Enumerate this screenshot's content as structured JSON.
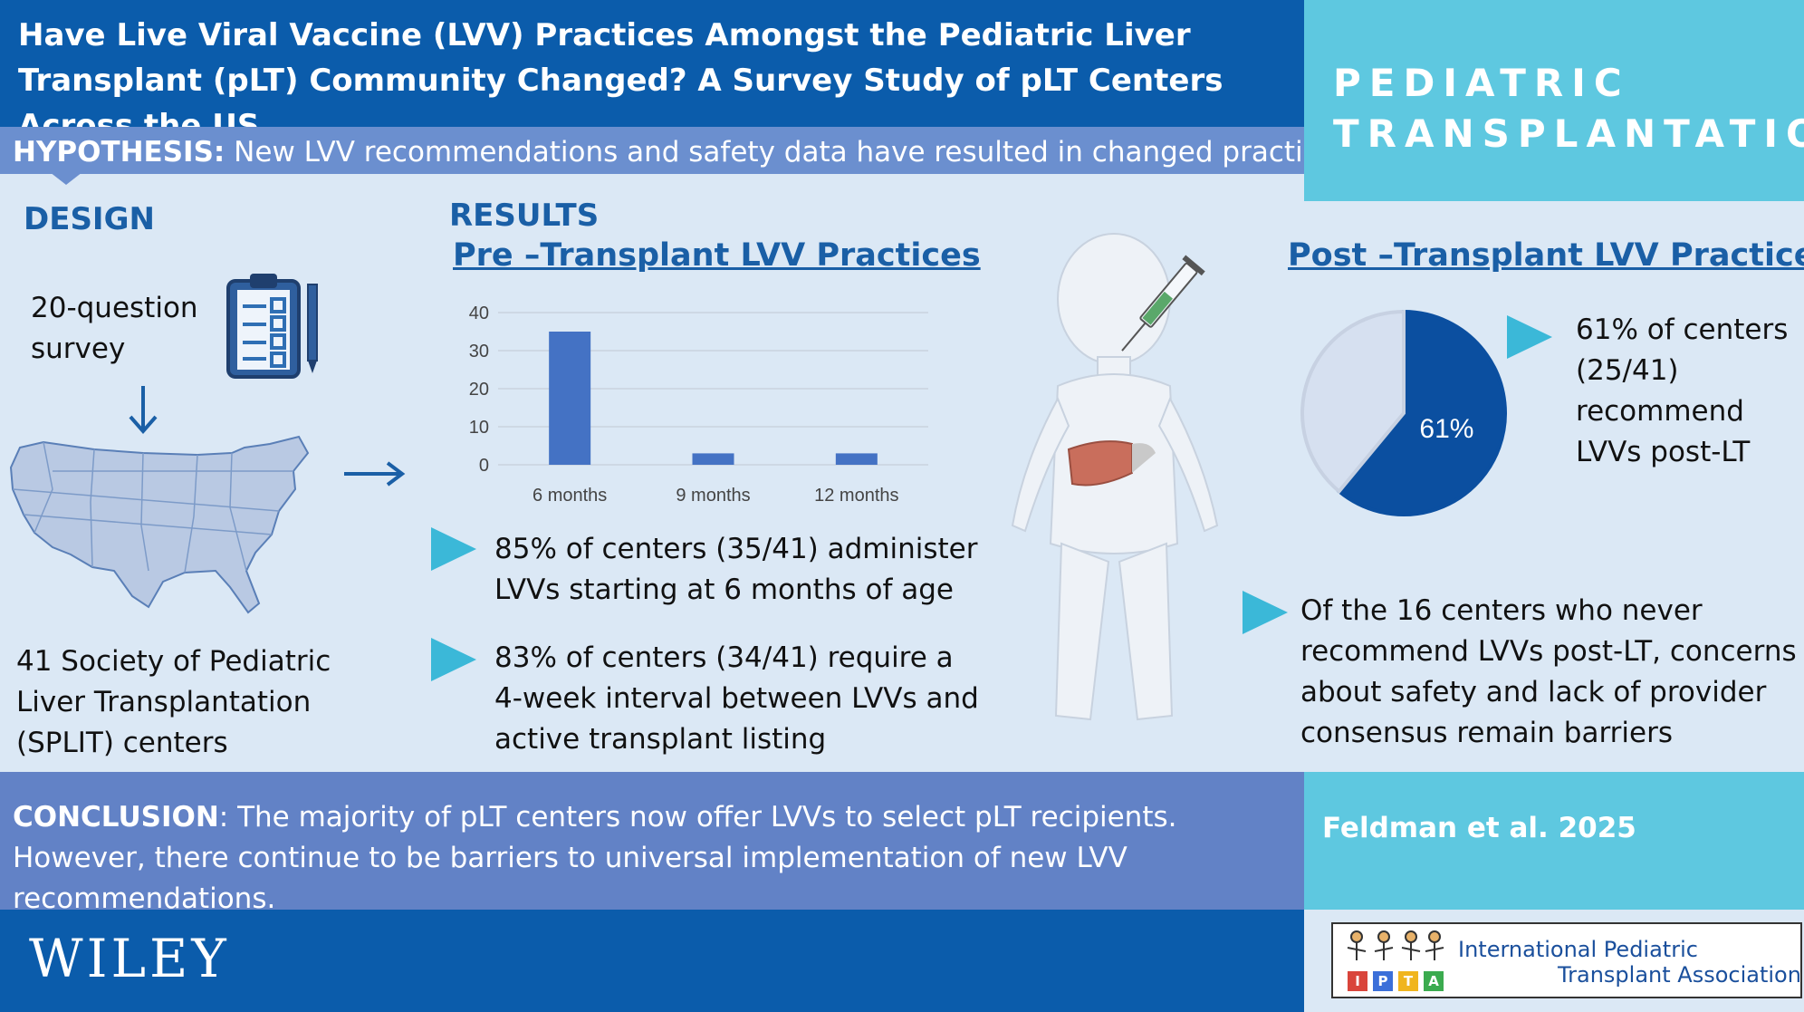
{
  "header": {
    "title": "Have Live Viral Vaccine (LVV) Practices Amongst the Pediatric Liver Transplant (pLT) Community Changed?  A Survey Study of pLT Centers Across the US",
    "hypothesis_label": "HYPOTHESIS:",
    "hypothesis_text": " New LVV recommendations and safety data have resulted in changed practices"
  },
  "journal": {
    "line1": "PEDIATRIC",
    "line2": "TRANSPLANTATION"
  },
  "design": {
    "heading": "DESIGN",
    "survey_text": "20-question survey",
    "centers_text": "41 Society of Pediatric Liver Transplantation (SPLIT) centers"
  },
  "results": {
    "heading": "RESULTS",
    "pre_heading": "Pre –Transplant LVV Practices",
    "bullet1": "85% of centers (35/41) administer LVVs starting at 6 months of age",
    "bullet2": "83% of centers (34/41) require a 4-week interval between LVVs and active transplant listing",
    "post_heading": "Post –Transplant LVV Practices",
    "post_stat": "61% of centers (25/41) recommend LVVs post-LT",
    "post_bullet": "Of the 16 centers who never recommend LVVs post-LT,  concerns about safety and lack of provider consensus remain barriers"
  },
  "chart_data": [
    {
      "type": "bar",
      "categories": [
        "6 months",
        "9 months",
        "12 months"
      ],
      "values": [
        35,
        3,
        3
      ],
      "ylim": [
        0,
        40
      ],
      "yticks": [
        0,
        10,
        20,
        30,
        40
      ],
      "grid": true,
      "color": "#4472c4"
    },
    {
      "type": "pie",
      "slices": [
        {
          "value": 61,
          "label": "61%",
          "color": "#0b4fa0"
        },
        {
          "value": 39,
          "label": "",
          "color": "#d6e0f0"
        }
      ]
    }
  ],
  "conclusion": {
    "label": "CONCLUSION",
    "text": ": The majority of pLT centers now offer LVVs to select pLT recipients.  However, there continue to be barriers to universal implementation of new LVV recommendations."
  },
  "citation": "Feldman et al. 2025",
  "footer": {
    "publisher": "WILEY",
    "ipta_line1": "International Pediatric",
    "ipta_line2": "Transplant Association",
    "ipta_blocks": [
      "I",
      "P",
      "T",
      "A"
    ]
  },
  "colors": {
    "navy": "#0b5cab",
    "periwinkle": "#6282c6",
    "cyan": "#5ec8e0",
    "bar": "#4472c4",
    "triangle": "#3bb8d8"
  }
}
